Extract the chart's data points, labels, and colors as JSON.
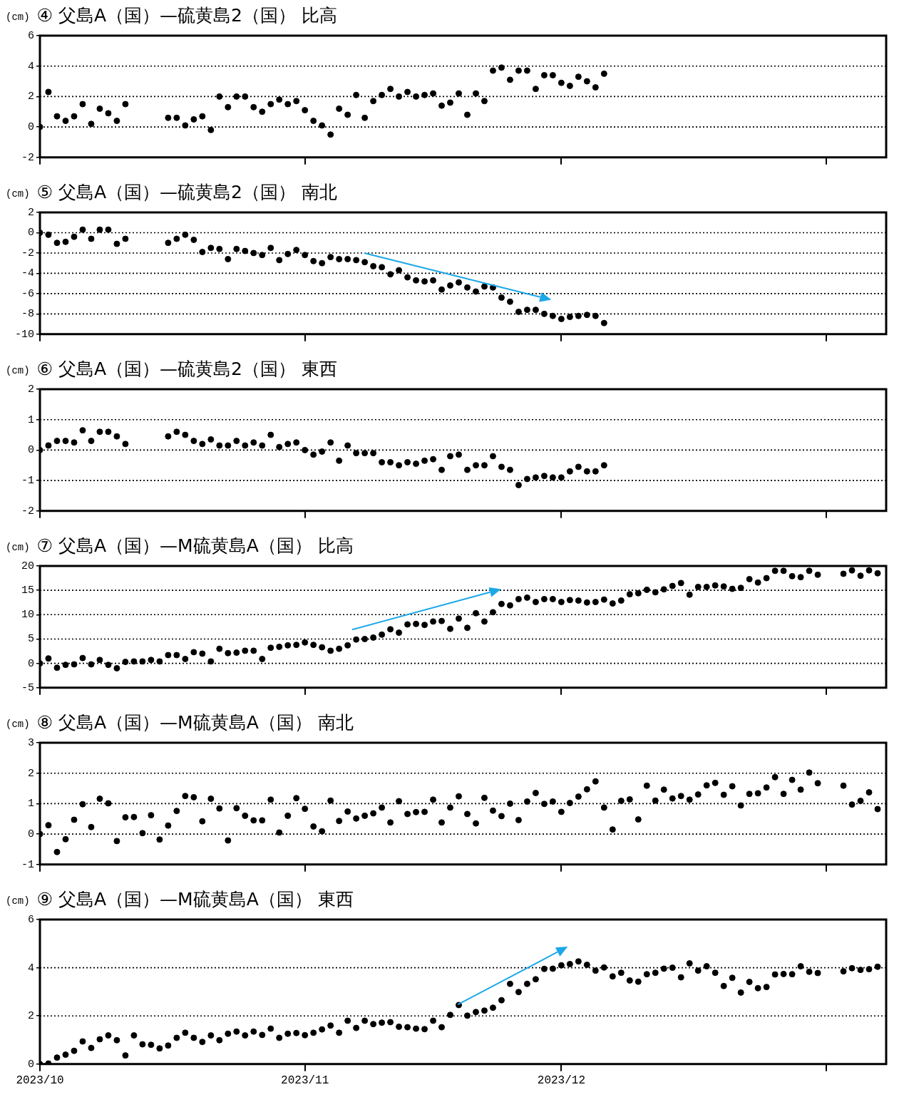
{
  "chart_data": [
    {
      "type": "scatter",
      "title": "④ 父島A（国）—硫黄島2（国） 比高",
      "ylabel": "(cm)",
      "color": "#000000",
      "marker": "circle",
      "grid": "y",
      "tick_labels": "y",
      "xlim": [
        "2023-10-01",
        "2024-01-08"
      ],
      "xticks": [
        {
          "value": "2023-10-01",
          "label": null
        },
        {
          "value": "2023-11-01",
          "label": null
        },
        {
          "value": "2023-12-01",
          "label": null
        },
        {
          "value": "2024-01-01",
          "label": null
        }
      ],
      "ylim": [
        -2,
        6
      ],
      "yticks": [
        -2,
        0,
        2,
        4,
        6
      ],
      "x": [
        "2023-10-01",
        "2023-10-02",
        "2023-10-03",
        "2023-10-04",
        "2023-10-05",
        "2023-10-06",
        "2023-10-07",
        "2023-10-08",
        "2023-10-09",
        "2023-10-10",
        "2023-10-11",
        "2023-10-12",
        "2023-10-13",
        "2023-10-14",
        "2023-10-15",
        "2023-10-16",
        "2023-10-17",
        "2023-10-18",
        "2023-10-19",
        "2023-10-20",
        "2023-10-21",
        "2023-10-22",
        "2023-10-23",
        "2023-10-24",
        "2023-10-25",
        "2023-10-26",
        "2023-10-27",
        "2023-10-28",
        "2023-10-29",
        "2023-10-30",
        "2023-10-31",
        "2023-11-01",
        "2023-11-02",
        "2023-11-03",
        "2023-11-04",
        "2023-11-05",
        "2023-11-06",
        "2023-11-07",
        "2023-11-08",
        "2023-11-09",
        "2023-11-10",
        "2023-11-11",
        "2023-11-12",
        "2023-11-13",
        "2023-11-14",
        "2023-11-15",
        "2023-11-16",
        "2023-11-17",
        "2023-11-18",
        "2023-11-19",
        "2023-11-20",
        "2023-11-21",
        "2023-11-22",
        "2023-11-23",
        "2023-11-24",
        "2023-11-25",
        "2023-11-26",
        "2023-11-27",
        "2023-11-28",
        "2023-11-29",
        "2023-11-30",
        "2023-12-01",
        "2023-12-02",
        "2023-12-03",
        "2023-12-04",
        "2023-12-05",
        "2023-12-06"
      ],
      "values": [
        0,
        2.3,
        0.7,
        0.4,
        0.7,
        1.5,
        0.2,
        1.2,
        0.9,
        0.4,
        1.5,
        null,
        null,
        null,
        null,
        0.6,
        0.6,
        0.1,
        0.5,
        0.7,
        -0.2,
        2.0,
        1.3,
        2.0,
        2.0,
        1.3,
        1.0,
        1.5,
        1.8,
        1.5,
        1.7,
        1.1,
        0.4,
        0.1,
        -0.5,
        1.2,
        0.8,
        2.1,
        0.6,
        1.7,
        2.1,
        2.5,
        2.0,
        2.3,
        2.0,
        2.1,
        2.2,
        1.4,
        1.6,
        2.2,
        0.8,
        2.2,
        1.7,
        3.7,
        3.9,
        3.1,
        3.7,
        3.7,
        2.5,
        3.4,
        3.4,
        2.9,
        2.7,
        3.3,
        3.0,
        2.6,
        3.5
      ]
    },
    {
      "type": "scatter",
      "title": "⑤ 父島A（国）—硫黄島2（国） 南北",
      "ylabel": "(cm)",
      "color": "#000000",
      "marker": "circle",
      "grid": "y",
      "tick_labels": "y",
      "xlim": [
        "2023-10-01",
        "2024-01-08"
      ],
      "xticks": [
        {
          "value": "2023-10-01",
          "label": null
        },
        {
          "value": "2023-11-01",
          "label": null
        },
        {
          "value": "2023-12-01",
          "label": null
        },
        {
          "value": "2024-01-01",
          "label": null
        }
      ],
      "ylim": [
        -10,
        2
      ],
      "yticks": [
        -10,
        -8,
        -6,
        -4,
        -2,
        0,
        2
      ],
      "x": [
        "2023-10-01",
        "2023-10-02",
        "2023-10-03",
        "2023-10-04",
        "2023-10-05",
        "2023-10-06",
        "2023-10-07",
        "2023-10-08",
        "2023-10-09",
        "2023-10-10",
        "2023-10-11",
        "2023-10-12",
        "2023-10-13",
        "2023-10-14",
        "2023-10-15",
        "2023-10-16",
        "2023-10-17",
        "2023-10-18",
        "2023-10-19",
        "2023-10-20",
        "2023-10-21",
        "2023-10-22",
        "2023-10-23",
        "2023-10-24",
        "2023-10-25",
        "2023-10-26",
        "2023-10-27",
        "2023-10-28",
        "2023-10-29",
        "2023-10-30",
        "2023-10-31",
        "2023-11-01",
        "2023-11-02",
        "2023-11-03",
        "2023-11-04",
        "2023-11-05",
        "2023-11-06",
        "2023-11-07",
        "2023-11-08",
        "2023-11-09",
        "2023-11-10",
        "2023-11-11",
        "2023-11-12",
        "2023-11-13",
        "2023-11-14",
        "2023-11-15",
        "2023-11-16",
        "2023-11-17",
        "2023-11-18",
        "2023-11-19",
        "2023-11-20",
        "2023-11-21",
        "2023-11-22",
        "2023-11-23",
        "2023-11-24",
        "2023-11-25",
        "2023-11-26",
        "2023-11-27",
        "2023-11-28",
        "2023-11-29",
        "2023-11-30",
        "2023-12-01",
        "2023-12-02",
        "2023-12-03",
        "2023-12-04",
        "2023-12-05",
        "2023-12-06"
      ],
      "values": [
        0,
        -0.2,
        -1.0,
        -0.9,
        -0.4,
        0.3,
        -0.6,
        0.3,
        0.3,
        -1.1,
        -0.6,
        null,
        null,
        null,
        null,
        -1.0,
        -0.6,
        -0.2,
        -0.7,
        -1.9,
        -1.5,
        -1.6,
        -2.6,
        -1.6,
        -1.8,
        -2.0,
        -2.2,
        -1.5,
        -2.7,
        -2.1,
        -1.7,
        -2.2,
        -2.8,
        -3.0,
        -2.4,
        -2.6,
        -2.6,
        -2.7,
        -2.9,
        -3.3,
        -3.4,
        -4.1,
        -3.7,
        -4.4,
        -4.7,
        -4.8,
        -4.7,
        -5.6,
        -5.2,
        -4.9,
        -5.4,
        -5.8,
        -5.3,
        -5.4,
        -6.4,
        -6.8,
        -7.8,
        -7.6,
        -7.6,
        -8.0,
        -8.2,
        -8.5,
        -8.3,
        -8.2,
        -8.1,
        -8.2,
        -8.9
      ]
    },
    {
      "type": "scatter",
      "title": "⑥ 父島A（国）—硫黄島2（国） 東西",
      "ylabel": "(cm)",
      "color": "#000000",
      "marker": "circle",
      "grid": "y",
      "tick_labels": "y",
      "xlim": [
        "2023-10-01",
        "2024-01-08"
      ],
      "xticks": [
        {
          "value": "2023-10-01",
          "label": null
        },
        {
          "value": "2023-11-01",
          "label": null
        },
        {
          "value": "2023-12-01",
          "label": null
        },
        {
          "value": "2024-01-01",
          "label": null
        }
      ],
      "ylim": [
        -2,
        2
      ],
      "yticks": [
        -2,
        -1,
        0,
        1,
        2
      ],
      "x": [
        "2023-10-01",
        "2023-10-02",
        "2023-10-03",
        "2023-10-04",
        "2023-10-05",
        "2023-10-06",
        "2023-10-07",
        "2023-10-08",
        "2023-10-09",
        "2023-10-10",
        "2023-10-11",
        "2023-10-12",
        "2023-10-13",
        "2023-10-14",
        "2023-10-15",
        "2023-10-16",
        "2023-10-17",
        "2023-10-18",
        "2023-10-19",
        "2023-10-20",
        "2023-10-21",
        "2023-10-22",
        "2023-10-23",
        "2023-10-24",
        "2023-10-25",
        "2023-10-26",
        "2023-10-27",
        "2023-10-28",
        "2023-10-29",
        "2023-10-30",
        "2023-10-31",
        "2023-11-01",
        "2023-11-02",
        "2023-11-03",
        "2023-11-04",
        "2023-11-05",
        "2023-11-06",
        "2023-11-07",
        "2023-11-08",
        "2023-11-09",
        "2023-11-10",
        "2023-11-11",
        "2023-11-12",
        "2023-11-13",
        "2023-11-14",
        "2023-11-15",
        "2023-11-16",
        "2023-11-17",
        "2023-11-18",
        "2023-11-19",
        "2023-11-20",
        "2023-11-21",
        "2023-11-22",
        "2023-11-23",
        "2023-11-24",
        "2023-11-25",
        "2023-11-26",
        "2023-11-27",
        "2023-11-28",
        "2023-11-29",
        "2023-11-30",
        "2023-12-01",
        "2023-12-02",
        "2023-12-03",
        "2023-12-04",
        "2023-12-05",
        "2023-12-06"
      ],
      "values": [
        0,
        0.15,
        0.3,
        0.3,
        0.25,
        0.65,
        0.3,
        0.6,
        0.6,
        0.45,
        0.2,
        null,
        null,
        null,
        null,
        0.45,
        0.6,
        0.5,
        0.3,
        0.2,
        0.35,
        0.15,
        0.15,
        0.3,
        0.15,
        0.25,
        0.15,
        0.5,
        0.1,
        0.2,
        0.25,
        0.0,
        -0.15,
        -0.05,
        0.25,
        -0.35,
        0.15,
        -0.1,
        -0.1,
        -0.1,
        -0.4,
        -0.4,
        -0.5,
        -0.4,
        -0.45,
        -0.35,
        -0.3,
        -0.65,
        -0.2,
        -0.15,
        -0.65,
        -0.5,
        -0.5,
        -0.2,
        -0.55,
        -0.65,
        -1.15,
        -0.95,
        -0.9,
        -0.85,
        -0.9,
        -0.9,
        -0.7,
        -0.55,
        -0.7,
        -0.7,
        -0.5
      ]
    },
    {
      "type": "scatter",
      "title": "⑦ 父島A（国）—M硫黄島A（国） 比高",
      "ylabel": "(cm)",
      "color": "#000000",
      "marker": "circle",
      "grid": "y",
      "tick_labels": "y",
      "xlim": [
        "2023-10-01",
        "2024-01-08"
      ],
      "xticks": [
        {
          "value": "2023-10-01",
          "label": null
        },
        {
          "value": "2023-11-01",
          "label": null
        },
        {
          "value": "2023-12-01",
          "label": null
        },
        {
          "value": "2024-01-01",
          "label": null
        }
      ],
      "ylim": [
        -5,
        20
      ],
      "yticks": [
        -5,
        0,
        5,
        10,
        15,
        20
      ],
      "x": [
        "2023-10-01",
        "2023-10-02",
        "2023-10-03",
        "2023-10-04",
        "2023-10-05",
        "2023-10-06",
        "2023-10-07",
        "2023-10-08",
        "2023-10-09",
        "2023-10-10",
        "2023-10-11",
        "2023-10-12",
        "2023-10-13",
        "2023-10-14",
        "2023-10-15",
        "2023-10-16",
        "2023-10-17",
        "2023-10-18",
        "2023-10-19",
        "2023-10-20",
        "2023-10-21",
        "2023-10-22",
        "2023-10-23",
        "2023-10-24",
        "2023-10-25",
        "2023-10-26",
        "2023-10-27",
        "2023-10-28",
        "2023-10-29",
        "2023-10-30",
        "2023-10-31",
        "2023-11-01",
        "2023-11-02",
        "2023-11-03",
        "2023-11-04",
        "2023-11-05",
        "2023-11-06",
        "2023-11-07",
        "2023-11-08",
        "2023-11-09",
        "2023-11-10",
        "2023-11-11",
        "2023-11-12",
        "2023-11-13",
        "2023-11-14",
        "2023-11-15",
        "2023-11-16",
        "2023-11-17",
        "2023-11-18",
        "2023-11-19",
        "2023-11-20",
        "2023-11-21",
        "2023-11-22",
        "2023-11-23",
        "2023-11-24",
        "2023-11-25",
        "2023-11-26",
        "2023-11-27",
        "2023-11-28",
        "2023-11-29",
        "2023-11-30",
        "2023-12-01",
        "2023-12-02",
        "2023-12-03",
        "2023-12-04",
        "2023-12-05",
        "2023-12-06",
        "2023-12-07",
        "2023-12-08",
        "2023-12-09",
        "2023-12-10",
        "2023-12-11",
        "2023-12-12",
        "2023-12-13",
        "2023-12-14",
        "2023-12-15",
        "2023-12-16",
        "2023-12-17",
        "2023-12-18",
        "2023-12-19",
        "2023-12-20",
        "2023-12-21",
        "2023-12-22",
        "2023-12-23",
        "2023-12-24",
        "2023-12-25",
        "2023-12-26",
        "2023-12-27",
        "2023-12-28",
        "2023-12-29",
        "2023-12-30",
        "2023-12-31",
        "2024-01-01",
        "2024-01-02",
        "2024-01-03",
        "2024-01-04",
        "2024-01-05",
        "2024-01-06",
        "2024-01-07"
      ],
      "values": [
        0,
        1.0,
        -0.9,
        -0.3,
        -0.2,
        1.1,
        -0.2,
        0.7,
        -0.3,
        -1.0,
        0.3,
        0.4,
        0.4,
        0.7,
        0.4,
        1.7,
        1.7,
        0.9,
        2.3,
        2.0,
        0.4,
        3.0,
        2.1,
        2.2,
        2.6,
        2.6,
        0.9,
        3.2,
        3.4,
        3.7,
        3.8,
        4.3,
        3.8,
        3.3,
        2.6,
        3.0,
        3.7,
        4.9,
        5.0,
        5.3,
        5.9,
        7.0,
        6.3,
        8.0,
        8.1,
        7.9,
        8.6,
        8.7,
        7.1,
        9.2,
        7.3,
        10.3,
        8.6,
        10.5,
        12.2,
        11.9,
        13.2,
        13.5,
        12.6,
        13.2,
        13.2,
        12.6,
        13.0,
        12.9,
        12.5,
        12.6,
        13.1,
        12.3,
        12.9,
        14.2,
        14.4,
        15.1,
        14.6,
        15.2,
        15.9,
        16.5,
        14.1,
        15.7,
        15.7,
        16.0,
        15.8,
        15.3,
        15.5,
        17.3,
        16.6,
        17.5,
        19.0,
        19.0,
        17.9,
        17.7,
        19.0,
        18.2,
        null,
        null,
        18.4,
        19.1,
        18.0,
        19.1,
        18.5
      ]
    },
    {
      "type": "scatter",
      "title": "⑧ 父島A（国）—M硫黄島A（国） 南北",
      "ylabel": "(cm)",
      "color": "#000000",
      "marker": "circle",
      "grid": "y",
      "tick_labels": "y",
      "xlim": [
        "2023-10-01",
        "2024-01-08"
      ],
      "xticks": [
        {
          "value": "2023-10-01",
          "label": null
        },
        {
          "value": "2023-11-01",
          "label": null
        },
        {
          "value": "2023-12-01",
          "label": null
        },
        {
          "value": "2024-01-01",
          "label": null
        }
      ],
      "ylim": [
        -1,
        3
      ],
      "yticks": [
        -1,
        0,
        1,
        2,
        3
      ],
      "x": [
        "2023-10-01",
        "2023-10-02",
        "2023-10-03",
        "2023-10-04",
        "2023-10-05",
        "2023-10-06",
        "2023-10-07",
        "2023-10-08",
        "2023-10-09",
        "2023-10-10",
        "2023-10-11",
        "2023-10-12",
        "2023-10-13",
        "2023-10-14",
        "2023-10-15",
        "2023-10-16",
        "2023-10-17",
        "2023-10-18",
        "2023-10-19",
        "2023-10-20",
        "2023-10-21",
        "2023-10-22",
        "2023-10-23",
        "2023-10-24",
        "2023-10-25",
        "2023-10-26",
        "2023-10-27",
        "2023-10-28",
        "2023-10-29",
        "2023-10-30",
        "2023-10-31",
        "2023-11-01",
        "2023-11-02",
        "2023-11-03",
        "2023-11-04",
        "2023-11-05",
        "2023-11-06",
        "2023-11-07",
        "2023-11-08",
        "2023-11-09",
        "2023-11-10",
        "2023-11-11",
        "2023-11-12",
        "2023-11-13",
        "2023-11-14",
        "2023-11-15",
        "2023-11-16",
        "2023-11-17",
        "2023-11-18",
        "2023-11-19",
        "2023-11-20",
        "2023-11-21",
        "2023-11-22",
        "2023-11-23",
        "2023-11-24",
        "2023-11-25",
        "2023-11-26",
        "2023-11-27",
        "2023-11-28",
        "2023-11-29",
        "2023-11-30",
        "2023-12-01",
        "2023-12-02",
        "2023-12-03",
        "2023-12-04",
        "2023-12-05",
        "2023-12-06",
        "2023-12-07",
        "2023-12-08",
        "2023-12-09",
        "2023-12-10",
        "2023-12-11",
        "2023-12-12",
        "2023-12-13",
        "2023-12-14",
        "2023-12-15",
        "2023-12-16",
        "2023-12-17",
        "2023-12-18",
        "2023-12-19",
        "2023-12-20",
        "2023-12-21",
        "2023-12-22",
        "2023-12-23",
        "2023-12-24",
        "2023-12-25",
        "2023-12-26",
        "2023-12-27",
        "2023-12-28",
        "2023-12-29",
        "2023-12-30",
        "2023-12-31",
        "2024-01-01",
        "2024-01-02",
        "2024-01-03",
        "2024-01-04",
        "2024-01-05",
        "2024-01-06",
        "2024-01-07"
      ],
      "values": [
        0,
        0.29,
        -0.59,
        -0.17,
        0.47,
        0.98,
        0.23,
        1.16,
        1.01,
        -0.23,
        0.55,
        0.56,
        0.03,
        0.62,
        -0.18,
        0.28,
        0.76,
        1.25,
        1.21,
        0.42,
        1.16,
        0.84,
        -0.21,
        0.85,
        0.6,
        0.45,
        0.45,
        1.13,
        0.05,
        0.6,
        1.18,
        0.83,
        0.25,
        0.09,
        1.1,
        0.43,
        0.74,
        0.51,
        0.6,
        0.68,
        0.87,
        0.38,
        1.08,
        0.66,
        0.72,
        0.73,
        1.13,
        0.38,
        0.87,
        1.24,
        0.66,
        0.35,
        1.19,
        0.77,
        0.59,
        1.0,
        0.46,
        1.07,
        1.35,
        0.99,
        1.07,
        0.73,
        1.02,
        1.23,
        1.47,
        1.73,
        0.87,
        0.15,
        1.09,
        1.14,
        0.48,
        1.59,
        1.1,
        1.46,
        1.17,
        1.25,
        1.13,
        1.3,
        1.6,
        1.68,
        1.29,
        1.57,
        0.94,
        1.32,
        1.34,
        1.53,
        1.87,
        1.32,
        1.78,
        1.46,
        2.02,
        1.67,
        null,
        null,
        1.59,
        0.97,
        1.09,
        1.37,
        0.82
      ]
    },
    {
      "type": "scatter",
      "title": "⑨ 父島A（国）—M硫黄島A（国） 東西",
      "ylabel": "(cm)",
      "color": "#000000",
      "marker": "circle",
      "grid": "y",
      "xlim": [
        "2023-10-01",
        "2024-01-08"
      ],
      "xticks": [
        {
          "value": "2023-10-01",
          "label": "2023/10"
        },
        {
          "value": "2023-11-01",
          "label": "2023/11"
        },
        {
          "value": "2023-12-01",
          "label": "2023/12"
        },
        {
          "value": "2024-01-01",
          "label": null
        }
      ],
      "ylim": [
        0,
        6
      ],
      "yticks": [
        0,
        2,
        4,
        6
      ],
      "x": [
        "2023-10-01",
        "2023-10-02",
        "2023-10-03",
        "2023-10-04",
        "2023-10-05",
        "2023-10-06",
        "2023-10-07",
        "2023-10-08",
        "2023-10-09",
        "2023-10-10",
        "2023-10-11",
        "2023-10-12",
        "2023-10-13",
        "2023-10-14",
        "2023-10-15",
        "2023-10-16",
        "2023-10-17",
        "2023-10-18",
        "2023-10-19",
        "2023-10-20",
        "2023-10-21",
        "2023-10-22",
        "2023-10-23",
        "2023-10-24",
        "2023-10-25",
        "2023-10-26",
        "2023-10-27",
        "2023-10-28",
        "2023-10-29",
        "2023-10-30",
        "2023-10-31",
        "2023-11-01",
        "2023-11-02",
        "2023-11-03",
        "2023-11-04",
        "2023-11-05",
        "2023-11-06",
        "2023-11-07",
        "2023-11-08",
        "2023-11-09",
        "2023-11-10",
        "2023-11-11",
        "2023-11-12",
        "2023-11-13",
        "2023-11-14",
        "2023-11-15",
        "2023-11-16",
        "2023-11-17",
        "2023-11-18",
        "2023-11-19",
        "2023-11-20",
        "2023-11-21",
        "2023-11-22",
        "2023-11-23",
        "2023-11-24",
        "2023-11-25",
        "2023-11-26",
        "2023-11-27",
        "2023-11-28",
        "2023-11-29",
        "2023-11-30",
        "2023-12-01",
        "2023-12-02",
        "2023-12-03",
        "2023-12-04",
        "2023-12-05",
        "2023-12-06",
        "2023-12-07",
        "2023-12-08",
        "2023-12-09",
        "2023-12-10",
        "2023-12-11",
        "2023-12-12",
        "2023-12-13",
        "2023-12-14",
        "2023-12-15",
        "2023-12-16",
        "2023-12-17",
        "2023-12-18",
        "2023-12-19",
        "2023-12-20",
        "2023-12-21",
        "2023-12-22",
        "2023-12-23",
        "2023-12-24",
        "2023-12-25",
        "2023-12-26",
        "2023-12-27",
        "2023-12-28",
        "2023-12-29",
        "2023-12-30",
        "2023-12-31",
        "2024-01-01",
        "2024-01-02",
        "2024-01-03",
        "2024-01-04",
        "2024-01-05",
        "2024-01-06",
        "2024-01-07"
      ],
      "values": [
        0,
        0.02,
        0.27,
        0.39,
        0.55,
        0.94,
        0.67,
        1.03,
        1.19,
        0.99,
        0.36,
        1.19,
        0.82,
        0.8,
        0.65,
        0.77,
        1.09,
        1.3,
        1.09,
        0.92,
        1.19,
        0.99,
        1.26,
        1.35,
        1.19,
        1.35,
        1.21,
        1.47,
        1.09,
        1.26,
        1.29,
        1.2,
        1.3,
        1.44,
        1.6,
        1.3,
        1.8,
        1.5,
        1.8,
        1.66,
        1.72,
        1.74,
        1.55,
        1.53,
        1.47,
        1.45,
        1.8,
        1.53,
        2.04,
        2.45,
        2.01,
        2.16,
        2.22,
        2.34,
        2.65,
        3.33,
        2.99,
        3.33,
        3.52,
        3.95,
        3.96,
        4.1,
        4.15,
        4.26,
        4.12,
        3.88,
        4.01,
        3.64,
        3.79,
        3.47,
        3.42,
        3.73,
        3.79,
        3.96,
        4.0,
        3.6,
        4.18,
        3.88,
        4.06,
        3.79,
        3.24,
        3.58,
        2.97,
        3.41,
        3.15,
        3.2,
        3.72,
        3.74,
        3.73,
        4.06,
        3.83,
        3.78,
        null,
        null,
        3.85,
        3.98,
        3.91,
        3.94,
        4.04
      ]
    }
  ]
}
